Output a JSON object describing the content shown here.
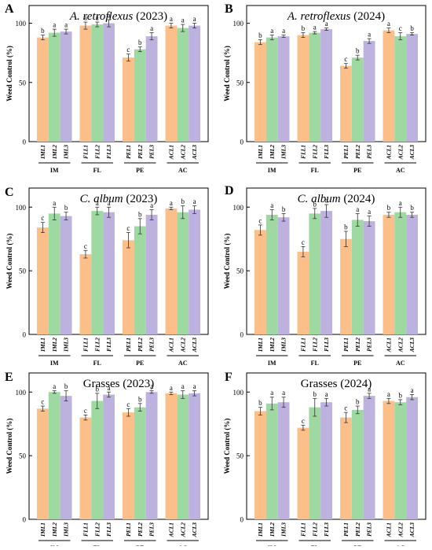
{
  "colors": {
    "series": [
      "#FDBF8A",
      "#9FD9A2",
      "#BDB2DF"
    ],
    "frame": "#000000",
    "error": "#333333"
  },
  "chart_data": [
    {
      "panel": "A",
      "type": "bar",
      "title_italic": "A. retroflexus",
      "title_rest": " (2023)",
      "ylabel": "Weed Control (%)",
      "ylim": [
        0,
        115
      ],
      "yticks": [
        0,
        50,
        100
      ],
      "groups": [
        {
          "name": "IM",
          "bars": [
            {
              "label": "IML1",
              "value": 88,
              "err": 2,
              "letter": "b"
            },
            {
              "label": "IML2",
              "value": 92,
              "err": 3,
              "letter": "a"
            },
            {
              "label": "IML3",
              "value": 93,
              "err": 2,
              "letter": "a"
            }
          ]
        },
        {
          "name": "FL",
          "bars": [
            {
              "label": "FLL1",
              "value": 98,
              "err": 3,
              "letter": "a"
            },
            {
              "label": "FLL2",
              "value": 99,
              "err": 2,
              "letter": "a"
            },
            {
              "label": "FLL3",
              "value": 100,
              "err": 3,
              "letter": "a"
            }
          ]
        },
        {
          "name": "PE",
          "bars": [
            {
              "label": "PEL1",
              "value": 71,
              "err": 3,
              "letter": "c"
            },
            {
              "label": "PEL2",
              "value": 78,
              "err": 2,
              "letter": "b"
            },
            {
              "label": "PEL3",
              "value": 89,
              "err": 3,
              "letter": "a"
            }
          ]
        },
        {
          "name": "AC",
          "bars": [
            {
              "label": "ACL1",
              "value": 98,
              "err": 2,
              "letter": "a"
            },
            {
              "label": "ACL2",
              "value": 96,
              "err": 3,
              "letter": "a"
            },
            {
              "label": "ACL3",
              "value": 98,
              "err": 2,
              "letter": "a"
            }
          ]
        }
      ]
    },
    {
      "panel": "B",
      "type": "bar",
      "title_italic": "A. retroflexus",
      "title_rest": " (2024)",
      "ylabel": "Weed Control (%)",
      "ylim": [
        0,
        115
      ],
      "yticks": [
        0,
        50,
        100
      ],
      "groups": [
        {
          "name": "IM",
          "bars": [
            {
              "label": "IML1",
              "value": 84,
              "err": 2,
              "letter": "b"
            },
            {
              "label": "IML2",
              "value": 88,
              "err": 2,
              "letter": "a"
            },
            {
              "label": "IML3",
              "value": 89,
              "err": 1,
              "letter": "a"
            }
          ]
        },
        {
          "name": "FL",
          "bars": [
            {
              "label": "FLL1",
              "value": 90,
              "err": 2,
              "letter": "b"
            },
            {
              "label": "FLL2",
              "value": 92,
              "err": 1,
              "letter": "a"
            },
            {
              "label": "FLL3",
              "value": 95,
              "err": 1,
              "letter": "a"
            }
          ]
        },
        {
          "name": "PE",
          "bars": [
            {
              "label": "PEL1",
              "value": 64,
              "err": 2,
              "letter": "c"
            },
            {
              "label": "PEL2",
              "value": 71,
              "err": 2,
              "letter": "b"
            },
            {
              "label": "PEL3",
              "value": 85,
              "err": 2,
              "letter": "a"
            }
          ]
        },
        {
          "name": "AC",
          "bars": [
            {
              "label": "ACL1",
              "value": 94,
              "err": 2,
              "letter": "a"
            },
            {
              "label": "ACL2",
              "value": 89,
              "err": 3,
              "letter": "c"
            },
            {
              "label": "ACL3",
              "value": 91,
              "err": 1,
              "letter": "b"
            }
          ]
        }
      ]
    },
    {
      "panel": "C",
      "type": "bar",
      "title_italic": "C. album",
      "title_rest": " (2023)",
      "ylabel": "Weed Control (%)",
      "ylim": [
        0,
        115
      ],
      "yticks": [
        0,
        50,
        100
      ],
      "groups": [
        {
          "name": "IM",
          "bars": [
            {
              "label": "IML1",
              "value": 84,
              "err": 4,
              "letter": "c"
            },
            {
              "label": "IML2",
              "value": 95,
              "err": 5,
              "letter": "a"
            },
            {
              "label": "IML3",
              "value": 93,
              "err": 3,
              "letter": "b"
            }
          ]
        },
        {
          "name": "FL",
          "bars": [
            {
              "label": "FLL1",
              "value": 63,
              "err": 3,
              "letter": "c"
            },
            {
              "label": "FLL2",
              "value": 97,
              "err": 3,
              "letter": "a"
            },
            {
              "label": "FLL3",
              "value": 96,
              "err": 4,
              "letter": "a"
            }
          ]
        },
        {
          "name": "PE",
          "bars": [
            {
              "label": "PEL1",
              "value": 74,
              "err": 6,
              "letter": "c"
            },
            {
              "label": "PEL2",
              "value": 85,
              "err": 6,
              "letter": "b"
            },
            {
              "label": "PEL3",
              "value": 94,
              "err": 4,
              "letter": "a"
            }
          ]
        },
        {
          "name": "AC",
          "bars": [
            {
              "label": "ACL1",
              "value": 99,
              "err": 1,
              "letter": "a"
            },
            {
              "label": "ACL2",
              "value": 96,
              "err": 5,
              "letter": "b"
            },
            {
              "label": "ACL3",
              "value": 98,
              "err": 3,
              "letter": "a"
            }
          ]
        }
      ]
    },
    {
      "panel": "D",
      "type": "bar",
      "title_italic": "C. album",
      "title_rest": " (2024)",
      "ylabel": "Weed Control (%)",
      "ylim": [
        0,
        115
      ],
      "yticks": [
        0,
        50,
        100
      ],
      "groups": [
        {
          "name": "IM",
          "bars": [
            {
              "label": "IML1",
              "value": 82,
              "err": 4,
              "letter": "c"
            },
            {
              "label": "IML2",
              "value": 94,
              "err": 4,
              "letter": "a"
            },
            {
              "label": "IML3",
              "value": 92,
              "err": 3,
              "letter": "b"
            }
          ]
        },
        {
          "name": "FL",
          "bars": [
            {
              "label": "FLL1",
              "value": 65,
              "err": 4,
              "letter": "c"
            },
            {
              "label": "FLL2",
              "value": 95,
              "err": 4,
              "letter": "b"
            },
            {
              "label": "FLL3",
              "value": 97,
              "err": 5,
              "letter": "a"
            }
          ]
        },
        {
          "name": "PE",
          "bars": [
            {
              "label": "PEL1",
              "value": 75,
              "err": 6,
              "letter": "b"
            },
            {
              "label": "PEL2",
              "value": 90,
              "err": 5,
              "letter": "a"
            },
            {
              "label": "PEL3",
              "value": 89,
              "err": 4,
              "letter": "a"
            }
          ]
        },
        {
          "name": "AC",
          "bars": [
            {
              "label": "ACL1",
              "value": 94,
              "err": 2,
              "letter": "b"
            },
            {
              "label": "ACL2",
              "value": 96,
              "err": 4,
              "letter": "a"
            },
            {
              "label": "ACL3",
              "value": 94,
              "err": 2,
              "letter": "b"
            }
          ]
        }
      ]
    },
    {
      "panel": "E",
      "type": "bar",
      "title_italic": "",
      "title_rest": "Grasses (2023)",
      "ylabel": "Weed Control (%)",
      "ylim": [
        0,
        115
      ],
      "yticks": [
        0,
        50,
        100
      ],
      "groups": [
        {
          "name": "IM",
          "bars": [
            {
              "label": "IML1",
              "value": 87,
              "err": 2,
              "letter": "c"
            },
            {
              "label": "IML2",
              "value": 100,
              "err": 1,
              "letter": "a"
            },
            {
              "label": "IML3",
              "value": 97,
              "err": 4,
              "letter": "b"
            }
          ]
        },
        {
          "name": "FL",
          "bars": [
            {
              "label": "FLL1",
              "value": 80,
              "err": 2,
              "letter": "c"
            },
            {
              "label": "FLL2",
              "value": 93,
              "err": 6,
              "letter": "b"
            },
            {
              "label": "FLL3",
              "value": 98,
              "err": 2,
              "letter": "a"
            }
          ]
        },
        {
          "name": "PE",
          "bars": [
            {
              "label": "PEL1",
              "value": 84,
              "err": 3,
              "letter": "c"
            },
            {
              "label": "PEL2",
              "value": 88,
              "err": 3,
              "letter": "b"
            },
            {
              "label": "PEL3",
              "value": 100,
              "err": 1,
              "letter": "a"
            }
          ]
        },
        {
          "name": "AC",
          "bars": [
            {
              "label": "ACL1",
              "value": 99,
              "err": 1,
              "letter": "a"
            },
            {
              "label": "ACL2",
              "value": 98,
              "err": 3,
              "letter": "a"
            },
            {
              "label": "ACL3",
              "value": 99,
              "err": 2,
              "letter": "a"
            }
          ]
        }
      ]
    },
    {
      "panel": "F",
      "type": "bar",
      "title_italic": "",
      "title_rest": "Grasses (2024)",
      "ylabel": "Weed Control (%)",
      "ylim": [
        0,
        115
      ],
      "yticks": [
        0,
        50,
        100
      ],
      "groups": [
        {
          "name": "IM",
          "bars": [
            {
              "label": "IML1",
              "value": 85,
              "err": 3,
              "letter": "b"
            },
            {
              "label": "IML2",
              "value": 91,
              "err": 5,
              "letter": "a"
            },
            {
              "label": "IML3",
              "value": 92,
              "err": 4,
              "letter": "a"
            }
          ]
        },
        {
          "name": "FL",
          "bars": [
            {
              "label": "FLL1",
              "value": 72,
              "err": 2,
              "letter": "c"
            },
            {
              "label": "FLL2",
              "value": 88,
              "err": 7,
              "letter": "b"
            },
            {
              "label": "FLL3",
              "value": 92,
              "err": 3,
              "letter": "a"
            }
          ]
        },
        {
          "name": "PE",
          "bars": [
            {
              "label": "PEL1",
              "value": 80,
              "err": 4,
              "letter": "c"
            },
            {
              "label": "PEL2",
              "value": 86,
              "err": 3,
              "letter": "b"
            },
            {
              "label": "PEL3",
              "value": 97,
              "err": 2,
              "letter": "a"
            }
          ]
        },
        {
          "name": "AC",
          "bars": [
            {
              "label": "ACL1",
              "value": 93,
              "err": 2,
              "letter": "a"
            },
            {
              "label": "ACL2",
              "value": 92,
              "err": 2,
              "letter": "b"
            },
            {
              "label": "ACL3",
              "value": 96,
              "err": 2,
              "letter": "a"
            }
          ]
        }
      ]
    }
  ]
}
